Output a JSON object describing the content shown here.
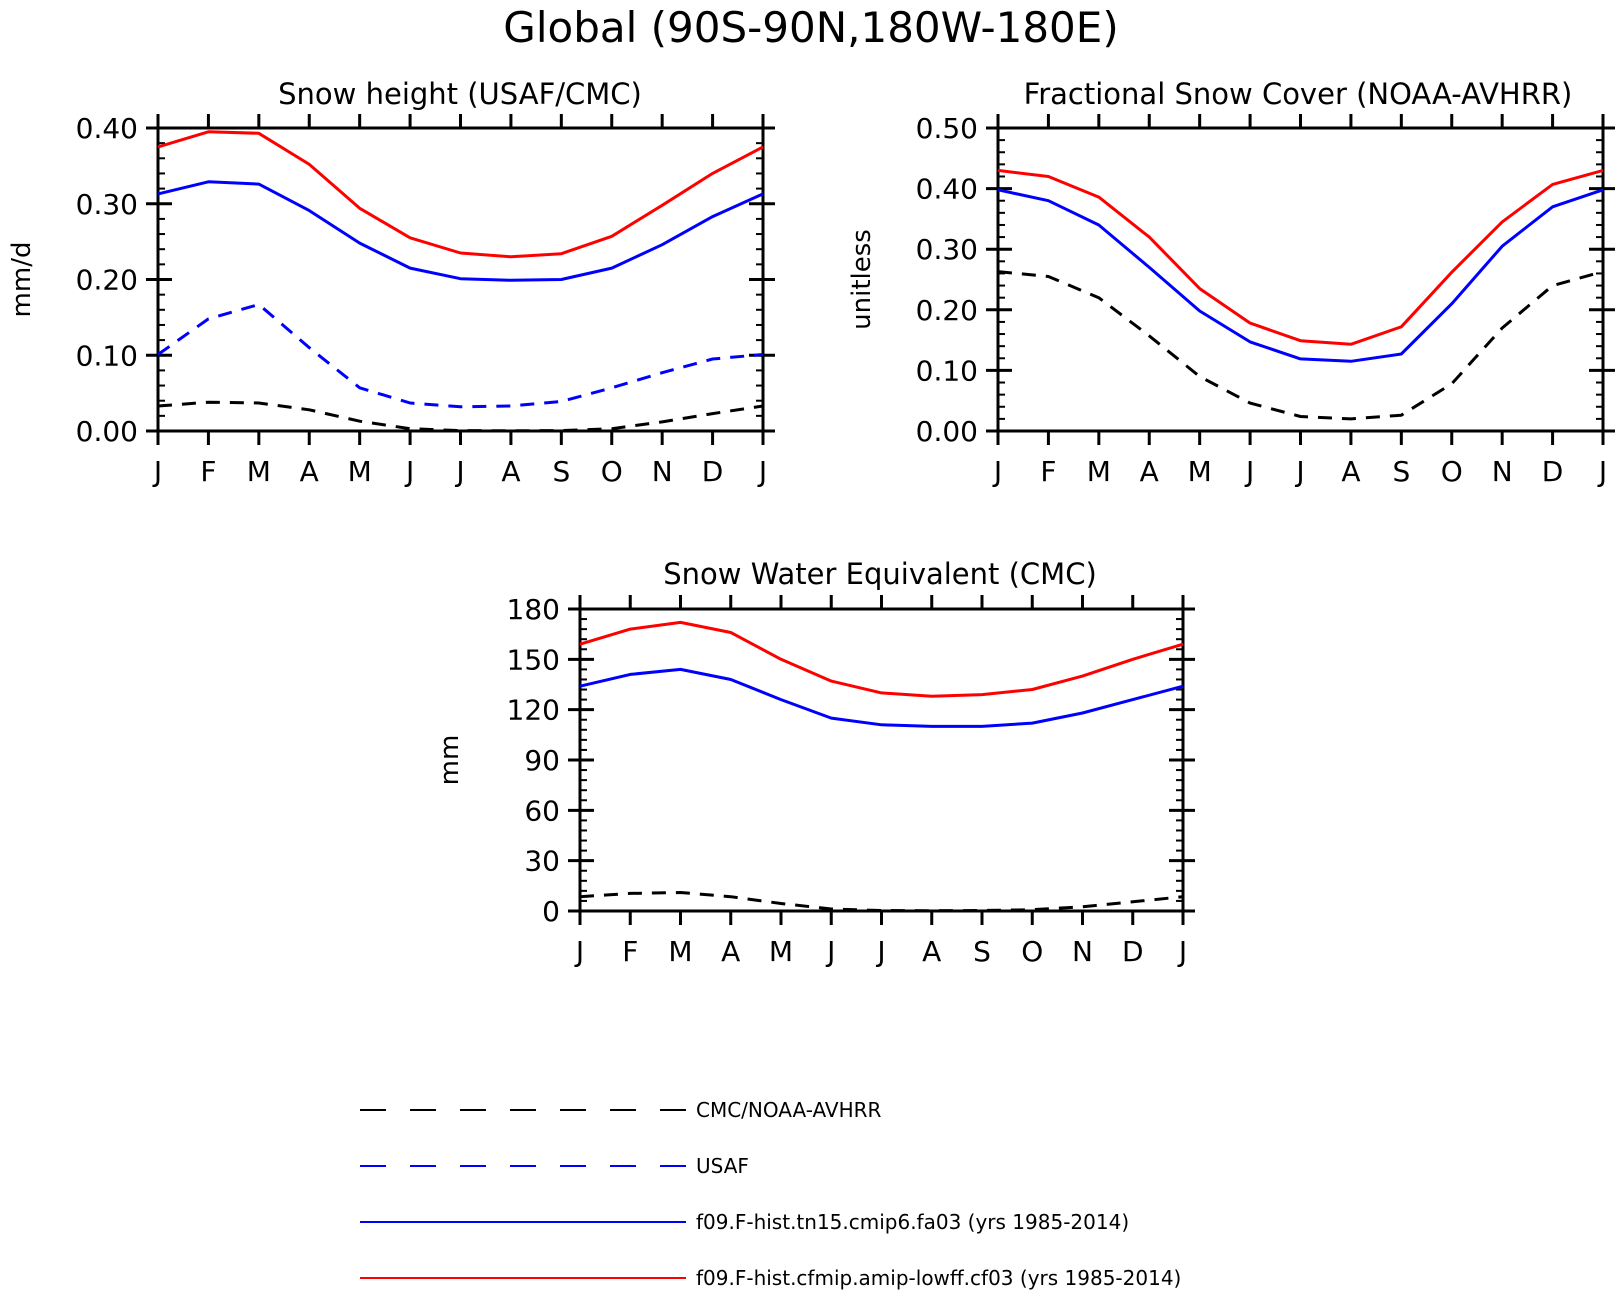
{
  "title": "Global (90S-90N,180W-180E)",
  "colors": {
    "obs": "#000000",
    "usaf": "#0000ff",
    "model1": "#0000ff",
    "model2": "#ff0000"
  },
  "chart_data": [
    {
      "type": "line",
      "title": "Snow height (USAF/CMC)",
      "xlabel": "",
      "ylabel": "mm/d",
      "categories": [
        "J",
        "F",
        "M",
        "A",
        "M",
        "J",
        "J",
        "A",
        "S",
        "O",
        "N",
        "D",
        "J"
      ],
      "ylim": [
        0,
        0.4
      ],
      "yticks": [
        "0.00",
        "0.10",
        "0.20",
        "0.30",
        "0.40"
      ],
      "ytick_values": [
        0,
        0.1,
        0.2,
        0.3,
        0.4
      ],
      "minor_step": 0.02,
      "series": [
        {
          "key": "obs",
          "style": "dashed",
          "color": "#000000",
          "values": [
            0.033,
            0.038,
            0.037,
            0.028,
            0.013,
            0.003,
            0.0005,
            0.0003,
            0.0005,
            0.003,
            0.012,
            0.023,
            0.033
          ]
        },
        {
          "key": "usaf",
          "style": "dashed",
          "color": "#0000ff",
          "values": [
            0.101,
            0.148,
            0.167,
            0.11,
            0.057,
            0.037,
            0.032,
            0.033,
            0.039,
            0.057,
            0.077,
            0.095,
            0.101
          ]
        },
        {
          "key": "model1",
          "style": "solid",
          "color": "#0000ff",
          "values": [
            0.313,
            0.329,
            0.326,
            0.291,
            0.248,
            0.215,
            0.201,
            0.199,
            0.2,
            0.215,
            0.246,
            0.283,
            0.313
          ]
        },
        {
          "key": "model2",
          "style": "solid",
          "color": "#ff0000",
          "values": [
            0.375,
            0.395,
            0.393,
            0.352,
            0.294,
            0.255,
            0.235,
            0.23,
            0.234,
            0.257,
            0.298,
            0.34,
            0.375
          ]
        }
      ]
    },
    {
      "type": "line",
      "title": "Fractional Snow Cover (NOAA-AVHRR)",
      "xlabel": "",
      "ylabel": "unitless",
      "categories": [
        "J",
        "F",
        "M",
        "A",
        "M",
        "J",
        "J",
        "A",
        "S",
        "O",
        "N",
        "D",
        "J"
      ],
      "ylim": [
        0,
        0.5
      ],
      "yticks": [
        "0.00",
        "0.10",
        "0.20",
        "0.30",
        "0.40",
        "0.50"
      ],
      "ytick_values": [
        0,
        0.1,
        0.2,
        0.3,
        0.4,
        0.5
      ],
      "minor_step": 0.02,
      "series": [
        {
          "key": "obs",
          "style": "dashed",
          "color": "#000000",
          "values": [
            0.263,
            0.255,
            0.22,
            0.157,
            0.09,
            0.046,
            0.024,
            0.02,
            0.026,
            0.078,
            0.17,
            0.24,
            0.263
          ]
        },
        {
          "key": "model1",
          "style": "solid",
          "color": "#0000ff",
          "values": [
            0.398,
            0.38,
            0.34,
            0.27,
            0.198,
            0.147,
            0.119,
            0.115,
            0.127,
            0.21,
            0.305,
            0.37,
            0.398
          ]
        },
        {
          "key": "model2",
          "style": "solid",
          "color": "#ff0000",
          "values": [
            0.43,
            0.42,
            0.386,
            0.32,
            0.235,
            0.178,
            0.149,
            0.143,
            0.172,
            0.262,
            0.345,
            0.407,
            0.43
          ]
        }
      ]
    },
    {
      "type": "line",
      "title": "Snow Water Equivalent (CMC)",
      "xlabel": "",
      "ylabel": "mm",
      "categories": [
        "J",
        "F",
        "M",
        "A",
        "M",
        "J",
        "J",
        "A",
        "S",
        "O",
        "N",
        "D",
        "J"
      ],
      "ylim": [
        0,
        180
      ],
      "yticks": [
        "0",
        "30",
        "60",
        "90",
        "120",
        "150",
        "180"
      ],
      "ytick_values": [
        0,
        30,
        60,
        90,
        120,
        150,
        180
      ],
      "minor_step": 6,
      "series": [
        {
          "key": "obs",
          "style": "dashed",
          "color": "#000000",
          "values": [
            8.5,
            10.5,
            11,
            8.5,
            4.5,
            1.2,
            0.3,
            0.2,
            0.3,
            0.8,
            2.5,
            5.5,
            8.5
          ]
        },
        {
          "key": "model1",
          "style": "solid",
          "color": "#0000ff",
          "values": [
            134,
            141,
            144,
            138,
            126,
            115,
            111,
            110,
            110,
            112,
            118,
            126,
            134
          ]
        },
        {
          "key": "model2",
          "style": "solid",
          "color": "#ff0000",
          "values": [
            159,
            168,
            172,
            166,
            150,
            137,
            130,
            128,
            129,
            132,
            140,
            150,
            159
          ]
        }
      ]
    }
  ],
  "legend": [
    {
      "key": "obs",
      "label": "CMC/NOAA-AVHRR",
      "style": "dashed",
      "color": "#000000"
    },
    {
      "key": "usaf",
      "label": "USAF",
      "style": "dashed",
      "color": "#0000ff"
    },
    {
      "key": "model1",
      "label": "f09.F-hist.tn15.cmip6.fa03 (yrs 1985-2014)",
      "style": "solid",
      "color": "#0000ff"
    },
    {
      "key": "model2",
      "label": "f09.F-hist.cfmip.amip-lowff.cf03 (yrs 1985-2014)",
      "style": "solid",
      "color": "#ff0000"
    }
  ]
}
